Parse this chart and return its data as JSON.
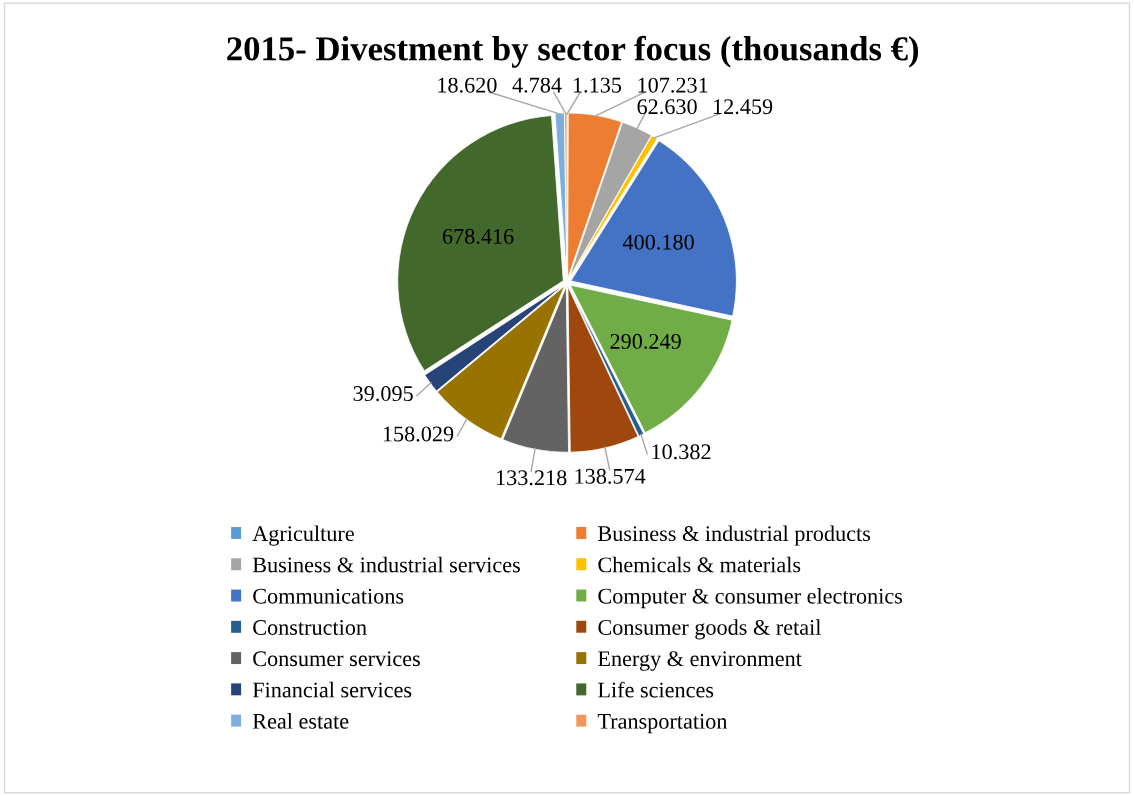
{
  "chart_data": {
    "type": "pie",
    "title": "2015- Divestment by sector focus (thousands €)",
    "categories": [
      "Agriculture",
      "Business & industrial products",
      "Business & industrial services",
      "Chemicals & materials",
      "Communications",
      "Computer & consumer electronics",
      "Construction",
      "Consumer goods & retail",
      "Consumer services",
      "Energy & environment",
      "Financial services",
      "Life sciences",
      "Real estate",
      "Transportation"
    ],
    "values": [
      1135,
      107231,
      62630,
      12459,
      400180,
      290249,
      10382,
      138574,
      133218,
      158029,
      39095,
      678416,
      18620,
      4784
    ],
    "value_labels": [
      "1.135",
      "107.231",
      "62.630",
      "12.459",
      "400.180",
      "290.249",
      "10.382",
      "138.574",
      "133.218",
      "158.029",
      "39.095",
      "678.416",
      "18.620",
      "4.784"
    ],
    "colors": [
      "#5b9bd5",
      "#ed7d31",
      "#a5a5a5",
      "#ffc000",
      "#4472c4",
      "#70ad47",
      "#255e91",
      "#9e480e",
      "#636363",
      "#997300",
      "#264478",
      "#43682b",
      "#7cafdd",
      "#f1975a"
    ],
    "legend": "bottom"
  }
}
